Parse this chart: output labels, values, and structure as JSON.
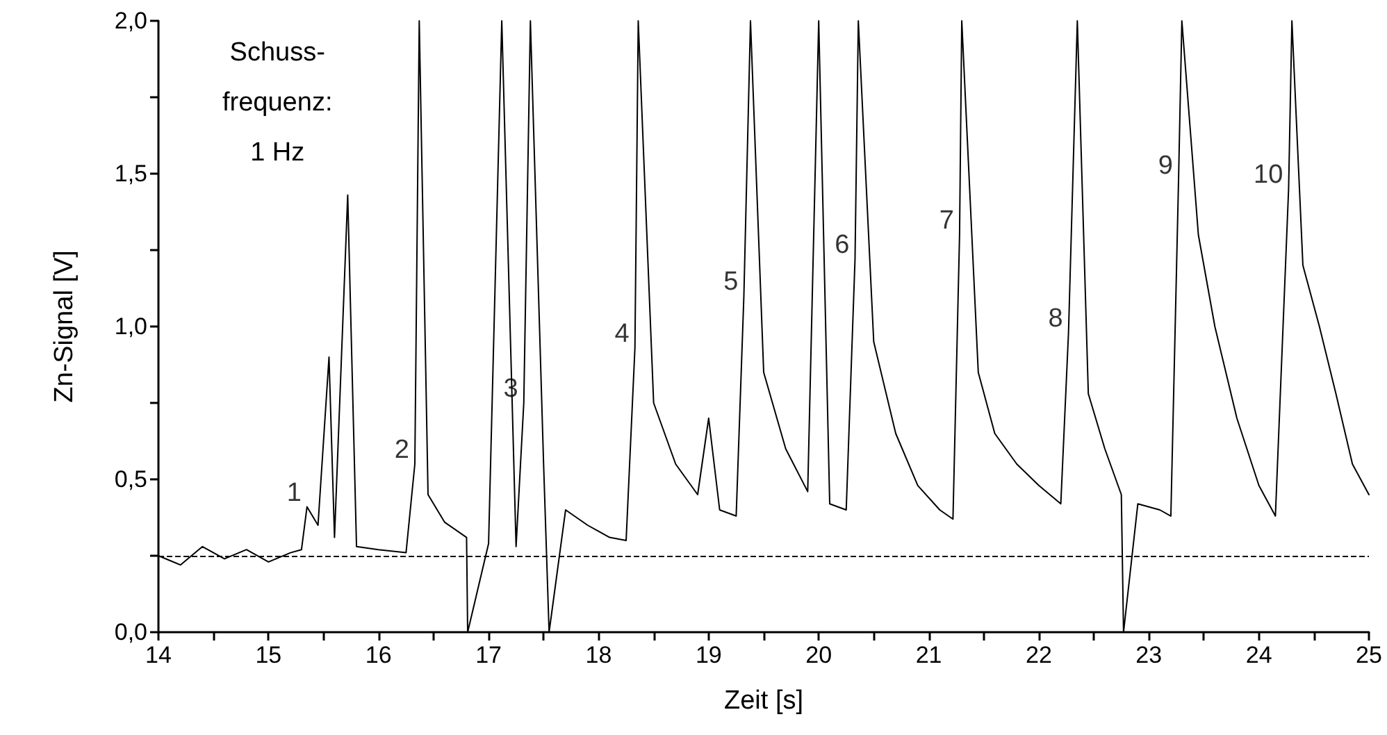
{
  "chart_data": {
    "type": "line",
    "xlabel": "Zeit [s]",
    "ylabel": "Zn-Signal [V]",
    "xlim": [
      14,
      25
    ],
    "ylim": [
      0,
      2.0
    ],
    "xticks": [
      14,
      {
        "value": 14.5,
        "label": null
      },
      15,
      {
        "value": 15.5,
        "label": null
      },
      16,
      {
        "value": 16.5,
        "label": null
      },
      17,
      {
        "value": 17.5,
        "label": null
      },
      18,
      {
        "value": 18.5,
        "label": null
      },
      19,
      {
        "value": 19.5,
        "label": null
      },
      20,
      {
        "value": 20.5,
        "label": null
      },
      21,
      {
        "value": 21.5,
        "label": null
      },
      22,
      {
        "value": 22.5,
        "label": null
      },
      23,
      {
        "value": 23.5,
        "label": null
      },
      24,
      {
        "value": 24.5,
        "label": null
      },
      25
    ],
    "yticks": [
      {
        "value": 0,
        "label": "0,0"
      },
      {
        "value": 0.25,
        "label": null
      },
      {
        "value": 0.5,
        "label": "0,5"
      },
      {
        "value": 0.75,
        "label": null
      },
      {
        "value": 1.0,
        "label": "1,0"
      },
      {
        "value": 1.25,
        "label": null
      },
      {
        "value": 1.5,
        "label": "1,5"
      },
      {
        "value": 1.75,
        "label": null
      },
      {
        "value": 2.0,
        "label": "2,0"
      }
    ],
    "grid": false,
    "marker": "none",
    "line_style": "solid",
    "ref_lines": [
      {
        "axis": "y",
        "value": 0.25,
        "color": "#000000",
        "line_style": "dashed"
      }
    ],
    "annotations": [
      "Schuss-\nfrequenz:\n1 Hz",
      {
        "text": "1",
        "x": 15.35,
        "y": 0.41
      },
      {
        "text": "2",
        "x": 16.33,
        "y": 0.55
      },
      {
        "text": "3",
        "x": 17.32,
        "y": 0.75
      },
      {
        "text": "4",
        "x": 18.33,
        "y": 0.93
      },
      {
        "text": "5",
        "x": 19.32,
        "y": 1.1
      },
      {
        "text": "6",
        "x": 20.33,
        "y": 1.22
      },
      {
        "text": "7",
        "x": 21.28,
        "y": 1.3
      },
      {
        "text": "8",
        "x": 22.27,
        "y": 0.98
      },
      {
        "text": "9",
        "x": 23.27,
        "y": 1.48
      },
      {
        "text": "10",
        "x": 24.27,
        "y": 1.45
      }
    ],
    "x": [
      14,
      14.2,
      14.4,
      14.6,
      14.8,
      15.0,
      15.2,
      15.3,
      15.35,
      15.45,
      15.55,
      15.6,
      15.72,
      15.8,
      16.0,
      16.25,
      16.33,
      16.37,
      16.45,
      16.6,
      16.8,
      16.81,
      17.0,
      17.12,
      17.25,
      17.32,
      17.38,
      17.5,
      17.55,
      17.7,
      17.9,
      18.1,
      18.25,
      18.33,
      18.36,
      18.5,
      18.7,
      18.9,
      19.0,
      19.1,
      19.25,
      19.32,
      19.38,
      19.5,
      19.7,
      19.9,
      20.0,
      20.1,
      20.25,
      20.33,
      20.36,
      20.5,
      20.7,
      20.9,
      21.1,
      21.22,
      21.28,
      21.3,
      21.45,
      21.6,
      21.8,
      22.0,
      22.2,
      22.27,
      22.35,
      22.45,
      22.6,
      22.75,
      22.77,
      22.9,
      23.1,
      23.2,
      23.27,
      23.3,
      23.45,
      23.6,
      23.8,
      24.0,
      24.15,
      24.27,
      24.3,
      24.4,
      24.55,
      24.7,
      24.85,
      25.0
    ],
    "series": [
      {
        "color": "#000000",
        "values": [
          0.25,
          0.22,
          0.28,
          0.24,
          0.27,
          0.23,
          0.26,
          0.27,
          0.41,
          0.35,
          0.9,
          0.31,
          1.43,
          0.28,
          0.27,
          0.26,
          0.55,
          2.0,
          0.45,
          0.36,
          0.31,
          0.0,
          0.29,
          2.0,
          0.28,
          0.75,
          2.0,
          0.55,
          0.0,
          0.4,
          0.35,
          0.31,
          0.3,
          0.93,
          2.0,
          0.75,
          0.55,
          0.45,
          0.7,
          0.4,
          0.38,
          1.1,
          2.0,
          0.85,
          0.6,
          0.46,
          2.0,
          0.42,
          0.4,
          1.22,
          2.0,
          0.95,
          0.65,
          0.48,
          0.4,
          0.37,
          1.3,
          2.0,
          0.85,
          0.65,
          0.55,
          0.48,
          0.42,
          0.98,
          2.0,
          0.78,
          0.6,
          0.45,
          0.0,
          0.42,
          0.4,
          0.38,
          1.48,
          2.0,
          1.3,
          1.0,
          0.7,
          0.48,
          0.38,
          1.45,
          2.0,
          1.2,
          1.0,
          0.78,
          0.55,
          0.45
        ]
      }
    ]
  }
}
